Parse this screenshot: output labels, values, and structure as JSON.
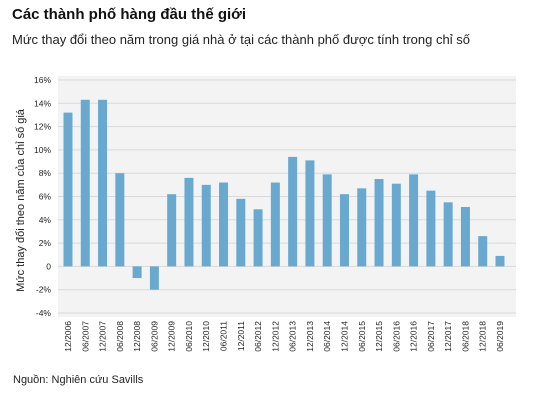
{
  "header": {
    "title": "Các thành phố hàng đầu thế giới",
    "subtitle": "Mức thay đổi theo năm trong giá nhà ở tại các thành phố được tính trong chỉ số"
  },
  "footer": {
    "source": "Nguồn: Nghiên cứu Savills"
  },
  "colors": {
    "bar": "#6aa9cf",
    "grid": "#d9d9d9",
    "panel": "#f3f3f3",
    "text": "#222222"
  },
  "chart_data": {
    "type": "bar",
    "title": "Các thành phố hàng đầu thế giới",
    "subtitle": "Mức thay đổi theo năm trong giá nhà ở tại các thành phố được tính trong chỉ số",
    "xlabel": "",
    "ylabel": "Mức thay đổi theo năm của chỉ số giá",
    "ylim": [
      -4,
      16
    ],
    "yticks": [
      -4,
      -2,
      0,
      2,
      4,
      6,
      8,
      10,
      12,
      14,
      16
    ],
    "ytick_labels": [
      "-4%",
      "-2%",
      "0",
      "2%",
      "4%",
      "6%",
      "8%",
      "10%",
      "12%",
      "14%",
      "16%"
    ],
    "grid": true,
    "legend": "none",
    "categories": [
      "12/2006",
      "06/2007",
      "12/2007",
      "06/2008",
      "12/2008",
      "06/2009",
      "12/2009",
      "06/2010",
      "12/2010",
      "06/2011",
      "12/2011",
      "06/2012",
      "12/2012",
      "06/2013",
      "12/2013",
      "06/2014",
      "12/2014",
      "06/2015",
      "12/2015",
      "06/2016",
      "12/2016",
      "06/2017",
      "12/2017",
      "06/2018",
      "12/2018",
      "06/2019"
    ],
    "values": [
      13.2,
      14.3,
      14.3,
      8.0,
      -1.0,
      -2.0,
      6.2,
      7.6,
      7.0,
      7.2,
      5.8,
      4.9,
      7.2,
      9.4,
      9.1,
      7.9,
      6.2,
      6.7,
      7.5,
      7.1,
      7.9,
      6.5,
      5.5,
      5.1,
      2.6,
      0.9
    ]
  }
}
